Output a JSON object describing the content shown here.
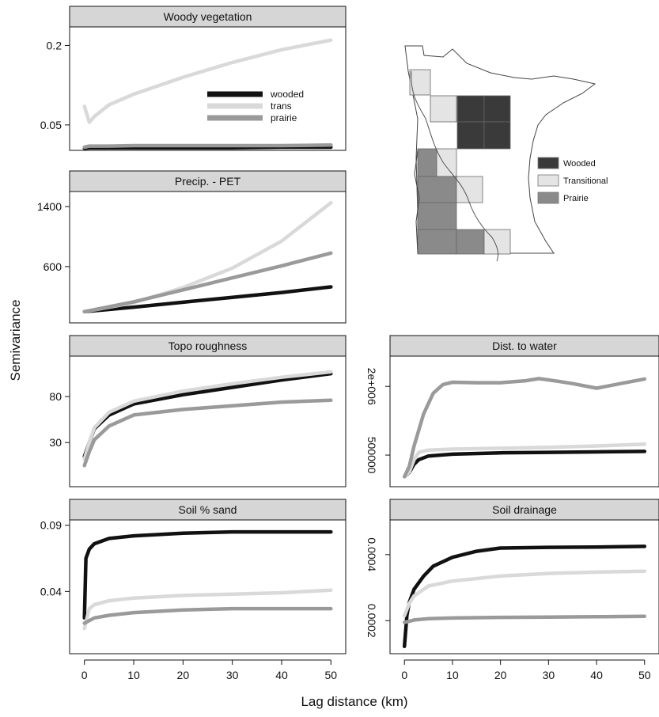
{
  "figure": {
    "ylabel": "Semivariance",
    "xlabel": "Lag distance (km)"
  },
  "colors": {
    "wooded": "#111111",
    "trans": "#d9d9d9",
    "prairie": "#9a9a9a",
    "header": "#d6d6d6"
  },
  "map": {
    "legend": [
      {
        "label": "Wooded",
        "color": "#3a3a3a"
      },
      {
        "label": "Transitional",
        "color": "#e4e4e4"
      },
      {
        "label": "Prairie",
        "color": "#8a8a8a"
      }
    ]
  },
  "chart_data": [
    {
      "type": "line",
      "title": "Woody vegetation",
      "ytick_labels": [
        "0.2",
        "0.05"
      ],
      "ytick_values": [
        0.2,
        0.05
      ],
      "ylim": [
        0.002,
        0.235
      ],
      "xlim": [
        -3,
        53
      ],
      "show_x_axis": false,
      "legend": {
        "position": "center-right",
        "entries": [
          "wooded",
          "trans",
          "prairie"
        ]
      },
      "series": [
        {
          "name": "wooded",
          "x": [
            0,
            1,
            5,
            10,
            20,
            30,
            40,
            50
          ],
          "values": [
            0.006,
            0.007,
            0.007,
            0.007,
            0.007,
            0.007,
            0.008,
            0.008
          ]
        },
        {
          "name": "trans",
          "x": [
            0,
            1,
            2,
            5,
            10,
            20,
            30,
            40,
            50
          ],
          "values": [
            0.085,
            0.055,
            0.066,
            0.088,
            0.108,
            0.14,
            0.168,
            0.192,
            0.21
          ]
        },
        {
          "name": "prairie",
          "x": [
            0,
            1,
            5,
            10,
            20,
            30,
            40,
            50
          ],
          "values": [
            0.008,
            0.01,
            0.01,
            0.011,
            0.011,
            0.011,
            0.011,
            0.012
          ]
        }
      ]
    },
    {
      "type": "line",
      "title": "Precip. - PET",
      "ytick_labels": [
        "1400",
        "600"
      ],
      "ytick_values": [
        1400,
        600
      ],
      "ylim": [
        -150,
        1600
      ],
      "xlim": [
        -3,
        53
      ],
      "show_x_axis": false,
      "series": [
        {
          "name": "wooded",
          "x": [
            0,
            10,
            20,
            30,
            40,
            50
          ],
          "values": [
            0,
            60,
            125,
            190,
            255,
            330
          ]
        },
        {
          "name": "trans",
          "x": [
            0,
            10,
            20,
            30,
            40,
            50
          ],
          "values": [
            0,
            120,
            320,
            580,
            940,
            1450
          ]
        },
        {
          "name": "prairie",
          "x": [
            0,
            10,
            20,
            30,
            40,
            50
          ],
          "values": [
            0,
            130,
            290,
            450,
            610,
            780
          ]
        }
      ]
    },
    {
      "type": "line",
      "title": "Topo roughness",
      "ytick_labels": [
        "80",
        "30"
      ],
      "ytick_values": [
        80,
        30
      ],
      "ylim": [
        -18,
        124
      ],
      "xlim": [
        -3,
        53
      ],
      "show_x_axis": false,
      "series": [
        {
          "name": "wooded",
          "x": [
            0,
            1,
            2,
            5,
            10,
            20,
            30,
            40,
            50
          ],
          "values": [
            15,
            30,
            45,
            60,
            72,
            82,
            90,
            98,
            105
          ]
        },
        {
          "name": "trans",
          "x": [
            0,
            1,
            2,
            5,
            10,
            20,
            30,
            40,
            50
          ],
          "values": [
            12,
            30,
            46,
            63,
            75,
            86,
            94,
            101,
            107
          ]
        },
        {
          "name": "prairie",
          "x": [
            0,
            1,
            2,
            5,
            10,
            20,
            30,
            40,
            50
          ],
          "values": [
            5,
            20,
            33,
            48,
            60,
            66,
            70,
            74,
            76
          ]
        }
      ]
    },
    {
      "type": "line",
      "title": "Dist. to water",
      "ytick_labels": [
        "2e+006",
        "500000"
      ],
      "ytick_values": [
        2000000,
        500000
      ],
      "ylim": [
        -190000,
        2660000
      ],
      "xlim": [
        -3,
        53
      ],
      "show_x_axis": false,
      "rotated_ytick_labels": true,
      "series": [
        {
          "name": "wooded",
          "x": [
            0,
            1,
            2,
            3,
            5,
            10,
            20,
            30,
            40,
            50
          ],
          "values": [
            30000,
            120000,
            300000,
            400000,
            480000,
            520000,
            550000,
            560000,
            570000,
            580000
          ]
        },
        {
          "name": "trans",
          "x": [
            0,
            1,
            2,
            3,
            5,
            10,
            20,
            30,
            40,
            50
          ],
          "values": [
            30000,
            130000,
            400000,
            560000,
            610000,
            630000,
            650000,
            670000,
            700000,
            740000
          ]
        },
        {
          "name": "prairie",
          "x": [
            0,
            1,
            2,
            4,
            6,
            8,
            10,
            15,
            20,
            25,
            28,
            32,
            35,
            40,
            45,
            50
          ],
          "values": [
            30000,
            250000,
            700000,
            1400000,
            1850000,
            2040000,
            2090000,
            2080000,
            2080000,
            2120000,
            2170000,
            2110000,
            2060000,
            1960000,
            2060000,
            2160000
          ]
        }
      ]
    },
    {
      "type": "line",
      "title": "Soil % sand",
      "ytick_labels": [
        "0.09",
        "0.04"
      ],
      "ytick_values": [
        0.09,
        0.04
      ],
      "ylim": [
        -0.007,
        0.094
      ],
      "xlim": [
        -3,
        53
      ],
      "show_x_axis": true,
      "xticks": [
        0,
        10,
        20,
        30,
        40,
        50
      ],
      "series": [
        {
          "name": "wooded",
          "x": [
            0,
            0.3,
            1,
            2,
            5,
            10,
            20,
            30,
            40,
            50
          ],
          "values": [
            0.02,
            0.065,
            0.072,
            0.076,
            0.08,
            0.082,
            0.084,
            0.085,
            0.085,
            0.085
          ]
        },
        {
          "name": "trans",
          "x": [
            0,
            1,
            2,
            5,
            10,
            20,
            30,
            40,
            50
          ],
          "values": [
            0.012,
            0.027,
            0.03,
            0.033,
            0.035,
            0.037,
            0.038,
            0.039,
            0.041
          ]
        },
        {
          "name": "prairie",
          "x": [
            0,
            1,
            2,
            5,
            10,
            20,
            30,
            40,
            50
          ],
          "values": [
            0.016,
            0.018,
            0.02,
            0.022,
            0.024,
            0.026,
            0.027,
            0.027,
            0.027
          ]
        }
      ]
    },
    {
      "type": "line",
      "title": "Soil drainage",
      "ytick_labels": [
        "0.0004",
        "0.0002"
      ],
      "ytick_values": [
        0.0004,
        0.0002
      ],
      "ylim": [
        0.0001,
        0.000505
      ],
      "xlim": [
        -3,
        53
      ],
      "show_x_axis": true,
      "rotated_ytick_labels": true,
      "xticks": [
        0,
        10,
        20,
        30,
        40,
        50
      ],
      "series": [
        {
          "name": "wooded",
          "x": [
            0,
            0.5,
            1,
            2,
            4,
            6,
            10,
            15,
            20,
            30,
            40,
            50
          ],
          "values": [
            0.000122,
            0.000215,
            0.000255,
            0.000295,
            0.000335,
            0.000365,
            0.000392,
            0.00041,
            0.00042,
            0.000422,
            0.000423,
            0.000425
          ]
        },
        {
          "name": "trans",
          "x": [
            0,
            1,
            2,
            5,
            10,
            20,
            30,
            40,
            50
          ],
          "values": [
            0.000215,
            0.000252,
            0.000275,
            0.000305,
            0.00032,
            0.000335,
            0.000343,
            0.000347,
            0.00035
          ]
        },
        {
          "name": "prairie",
          "x": [
            0,
            1,
            2,
            5,
            10,
            20,
            30,
            40,
            50
          ],
          "values": [
            0.000195,
            0.000198,
            0.000202,
            0.000206,
            0.000208,
            0.00021,
            0.000211,
            0.000212,
            0.000213
          ]
        }
      ]
    }
  ]
}
